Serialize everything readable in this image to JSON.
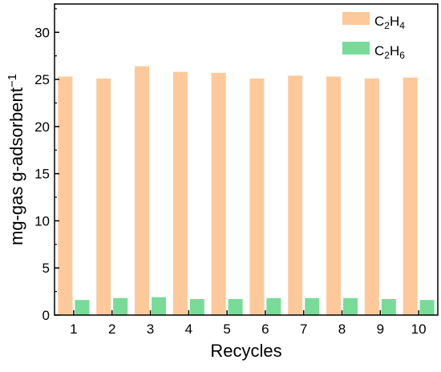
{
  "chart_data": {
    "type": "bar",
    "xlabel": "Recycles",
    "ylabel": {
      "main": "mg-gas g-adsorbent",
      "sup": "−1"
    },
    "categories": [
      "1",
      "2",
      "3",
      "4",
      "5",
      "6",
      "7",
      "8",
      "9",
      "10"
    ],
    "ylim": [
      0,
      33
    ],
    "yticks": [
      "0",
      "5",
      "10",
      "15",
      "20",
      "25",
      "30"
    ],
    "grid": false,
    "legend_position": "top-right",
    "series": [
      {
        "name": "C2H4",
        "label_parts": [
          "C",
          "2",
          "H",
          "4"
        ],
        "color": "#FDC99A",
        "values": [
          25.3,
          25.1,
          26.4,
          25.8,
          25.7,
          25.1,
          25.4,
          25.3,
          25.1,
          25.2
        ]
      },
      {
        "name": "C2H6",
        "label_parts": [
          "C",
          "2",
          "H",
          "6"
        ],
        "color": "#78DB98",
        "values": [
          1.6,
          1.8,
          1.9,
          1.7,
          1.7,
          1.8,
          1.8,
          1.8,
          1.7,
          1.6
        ]
      }
    ]
  }
}
